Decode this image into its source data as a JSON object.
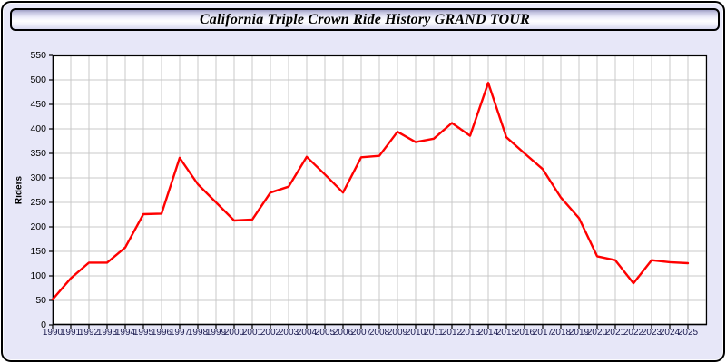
{
  "header": {
    "title": "California Triple Crown Ride History GRAND TOUR"
  },
  "colors": {
    "window_background": "#e7e7f8",
    "plot_background": "#ffffff",
    "grid_line": "#c9c9c9",
    "axis_frame": "#000000",
    "series_line": "#ff0000",
    "x_tick_text": "#1c1c50",
    "y_tick_text": "#000000"
  },
  "chart_data": {
    "type": "line",
    "title": "California Triple Crown Ride History GRAND TOUR",
    "xlabel": "",
    "ylabel": "Riders",
    "ylim": [
      0,
      550
    ],
    "y_ticks": [
      0,
      50,
      100,
      150,
      200,
      250,
      300,
      350,
      400,
      450,
      500,
      550
    ],
    "grid": true,
    "legend": false,
    "x": [
      1990,
      1991,
      1992,
      1993,
      1994,
      1995,
      1996,
      1997,
      1998,
      1999,
      2000,
      2001,
      2002,
      2003,
      2004,
      2005,
      2006,
      2007,
      2008,
      2009,
      2010,
      2011,
      2012,
      2013,
      2014,
      2015,
      2016,
      2017,
      2018,
      2019,
      2020,
      2021,
      2022,
      2023,
      2024,
      2025
    ],
    "series": [
      {
        "name": "Riders",
        "values": [
          52,
          95,
          127,
          127,
          158,
          226,
          227,
          341,
          287,
          250,
          213,
          215,
          270,
          282,
          343,
          307,
          270,
          342,
          345,
          394,
          373,
          380,
          412,
          386,
          494,
          383,
          350,
          318,
          260,
          218,
          140,
          132,
          85,
          132,
          128,
          126
        ]
      }
    ]
  }
}
